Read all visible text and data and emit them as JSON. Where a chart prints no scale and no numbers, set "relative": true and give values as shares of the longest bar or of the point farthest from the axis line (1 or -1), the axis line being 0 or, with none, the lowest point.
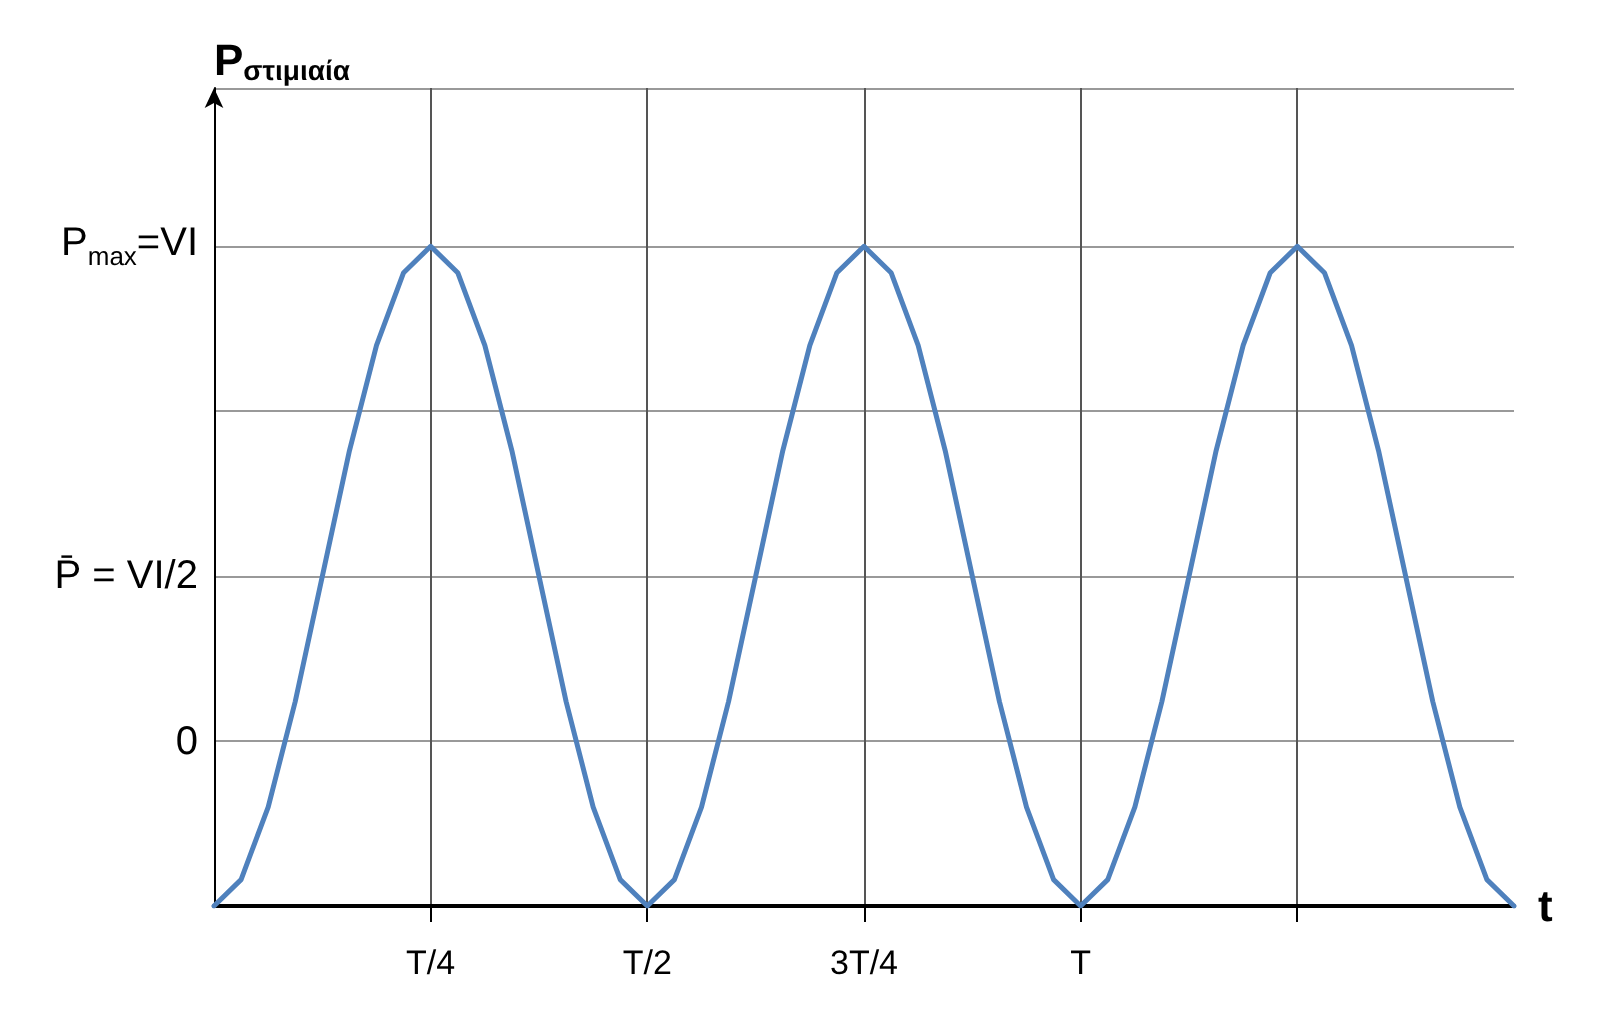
{
  "chart_data": {
    "type": "line",
    "xlabel": "t",
    "ylabel": "P$_{στιμιαία}$",
    "relative": true,
    "categories": [
      null,
      null,
      null,
      null,
      null,
      null,
      null,
      null,
      "T/4",
      null,
      null,
      null,
      null,
      null,
      null,
      null,
      "T/2",
      null,
      null,
      null,
      null,
      null,
      null,
      null,
      "3T/4",
      null,
      null,
      null,
      null,
      null,
      null,
      null,
      "T",
      null,
      null,
      null,
      null,
      null,
      null,
      null,
      null,
      null,
      null,
      null,
      null,
      null,
      null,
      null,
      null
    ],
    "series": [
      {
        "color": "#4f81bd",
        "values": [
          0,
          0.04,
          0.15,
          0.31,
          0.5,
          0.69,
          0.85,
          0.96,
          1,
          0.96,
          0.85,
          0.69,
          0.5,
          0.31,
          0.15,
          0.04,
          0,
          0.04,
          0.15,
          0.31,
          0.5,
          0.69,
          0.85,
          0.96,
          1,
          0.96,
          0.85,
          0.69,
          0.5,
          0.31,
          0.15,
          0.04,
          0,
          0.04,
          0.15,
          0.31,
          0.5,
          0.69,
          0.85,
          0.96,
          1,
          0.96,
          0.85,
          0.69,
          0.5,
          0.31,
          0.15,
          0.04,
          0
        ]
      }
    ],
    "annotations": [
      "0",
      "P̄ = VI/2",
      "P$_{max}$=VI"
    ],
    "grid": true,
    "marker": "none",
    "line_style": "solid"
  }
}
